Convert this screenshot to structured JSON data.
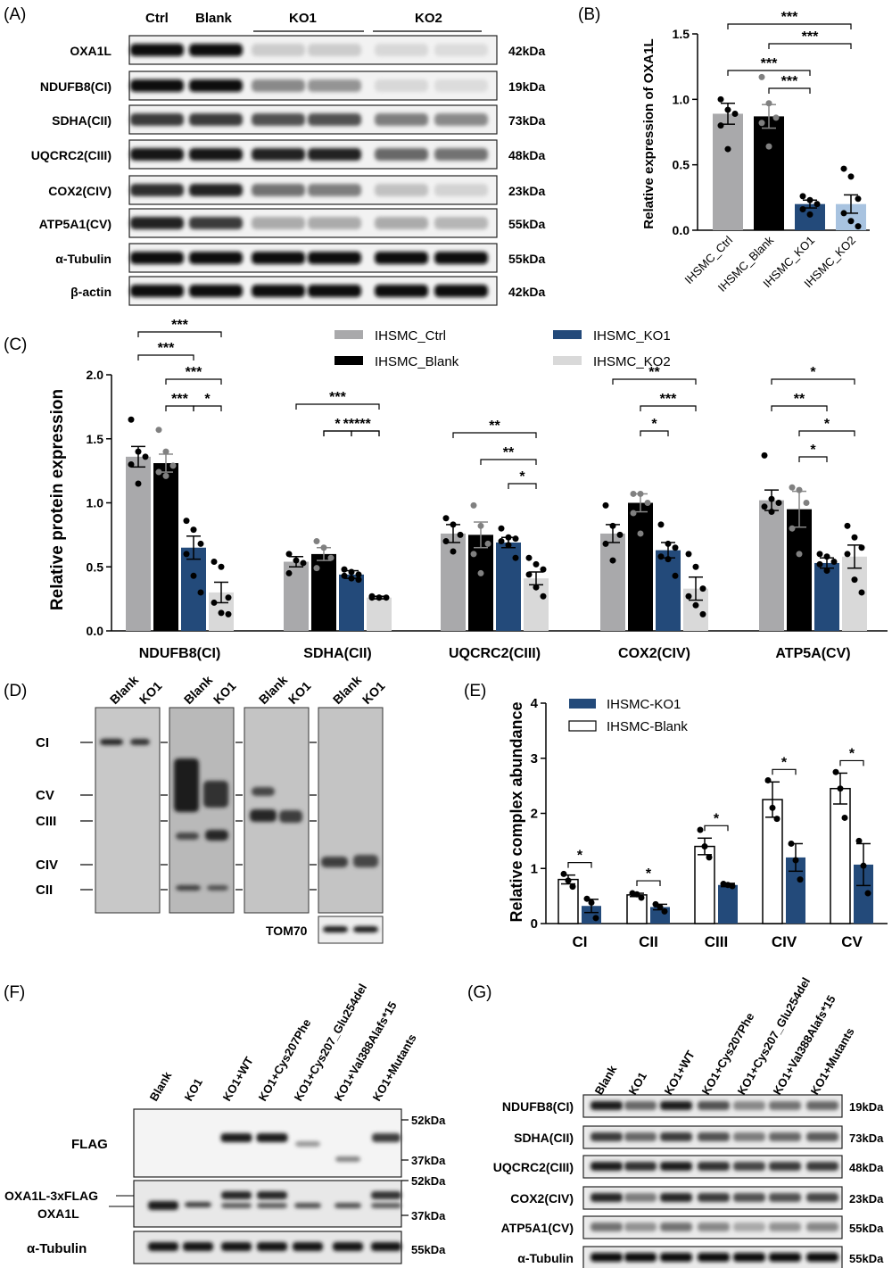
{
  "panels": {
    "A": "(A)",
    "B": "(B)",
    "C": "(C)",
    "D": "(D)",
    "E": "(E)",
    "F": "(F)",
    "G": "(G)"
  },
  "colors": {
    "ctrl": "#a9a9ab",
    "blank": "#000000",
    "ko1": "#234a7a",
    "ko2": "#a8c3e0",
    "ko2c": "#d9d9d9",
    "gray_dot": "#808080"
  },
  "panel_a": {
    "groups": [
      "Ctrl",
      "Blank",
      "KO1",
      "KO2"
    ],
    "rows": [
      {
        "label": "OXA1L",
        "kda": "42kDa",
        "intensity": [
          1,
          1,
          0.15,
          0.15,
          0.1,
          0.08
        ]
      },
      {
        "label": "NDUFB8(CI)",
        "kda": "19kDa",
        "intensity": [
          1,
          1,
          0.45,
          0.4,
          0.1,
          0.08
        ]
      },
      {
        "label": "SDHA(CII)",
        "kda": "73kDa",
        "intensity": [
          0.8,
          0.8,
          0.7,
          0.7,
          0.5,
          0.45
        ]
      },
      {
        "label": "UQCRC2(CIII)",
        "kda": "48kDa",
        "intensity": [
          0.95,
          0.95,
          0.9,
          0.9,
          0.6,
          0.55
        ]
      },
      {
        "label": "COX2(CIV)",
        "kda": "23kDa",
        "intensity": [
          0.85,
          0.9,
          0.55,
          0.5,
          0.2,
          0.12
        ]
      },
      {
        "label": "ATP5A1(CV)",
        "kda": "55kDa",
        "intensity": [
          0.9,
          0.8,
          0.3,
          0.3,
          0.3,
          0.25
        ]
      },
      {
        "label": "α-Tubulin",
        "kda": "55kDa",
        "intensity": [
          1,
          1,
          1,
          1,
          1,
          1
        ]
      },
      {
        "label": "β-actin",
        "kda": "42kDa",
        "intensity": [
          1,
          1,
          1,
          1,
          1,
          1
        ]
      }
    ]
  },
  "chart_data": [
    {
      "panel": "B",
      "type": "bar",
      "categories": [
        "IHSMC_Ctrl",
        "IHSMC_Blank",
        "IHSMC_KO1",
        "IHSMC_KO2"
      ],
      "values": [
        0.89,
        0.87,
        0.2,
        0.2
      ],
      "errors": [
        0.08,
        0.09,
        0.03,
        0.07
      ],
      "points": [
        [
          1.0,
          0.92,
          0.89,
          0.8,
          0.62
        ],
        [
          1.17,
          0.97,
          0.86,
          0.82,
          0.64
        ],
        [
          0.26,
          0.23,
          0.2,
          0.16,
          0.12
        ],
        [
          0.47,
          0.41,
          0.24,
          0.13,
          0.07,
          0.03
        ]
      ],
      "ylabel": "Relative expression of OXA1L",
      "ylim": [
        0,
        1.5
      ],
      "yticks": [
        "0.0",
        "0.5",
        "1.0",
        "1.5"
      ],
      "significance": [
        {
          "a": 0,
          "b": 3,
          "label": "***"
        },
        {
          "a": 1,
          "b": 3,
          "label": "***"
        },
        {
          "a": 0,
          "b": 2,
          "label": "***"
        },
        {
          "a": 1,
          "b": 2,
          "label": "***"
        }
      ]
    },
    {
      "panel": "C",
      "type": "bar",
      "categories": [
        "NDUFB8(CI)",
        "SDHA(CII)",
        "UQCRC2(CIII)",
        "COX2(CIV)",
        "ATP5A(CV)"
      ],
      "series": [
        {
          "name": "IHSMC_Ctrl",
          "values": [
            1.36,
            0.54,
            0.76,
            0.76,
            1.02
          ],
          "errors": [
            0.08,
            0.04,
            0.07,
            0.07,
            0.08
          ],
          "points": [
            [
              1.65,
              1.4,
              1.36,
              1.3,
              1.15
            ],
            [
              0.6,
              0.55,
              0.53,
              0.45
            ],
            [
              0.88,
              0.83,
              0.75,
              0.7,
              0.62
            ],
            [
              0.98,
              0.82,
              0.75,
              0.68,
              0.55
            ],
            [
              1.37,
              1.03,
              1.0,
              0.97,
              0.93
            ]
          ]
        },
        {
          "name": "IHSMC_Blank",
          "values": [
            1.31,
            0.6,
            0.75,
            1.0,
            0.95
          ],
          "errors": [
            0.07,
            0.05,
            0.1,
            0.07,
            0.14
          ],
          "points": [
            [
              1.57,
              1.4,
              1.29,
              1.24,
              1.21
            ],
            [
              0.7,
              0.65,
              0.57,
              0.49
            ],
            [
              0.98,
              0.82,
              0.68,
              0.6,
              0.45
            ],
            [
              1.07,
              1.07,
              1.0,
              0.92,
              0.76
            ],
            [
              1.12,
              1.1,
              1.0,
              0.8,
              0.6
            ]
          ]
        },
        {
          "name": "IHSMC_KO1",
          "values": [
            0.65,
            0.44,
            0.69,
            0.63,
            0.53
          ],
          "errors": [
            0.09,
            0.03,
            0.04,
            0.06,
            0.04
          ],
          "points": [
            [
              0.86,
              0.79,
              0.68,
              0.6,
              0.43,
              0.3
            ],
            [
              0.48,
              0.46,
              0.44,
              0.43,
              0.41,
              0.4
            ],
            [
              0.8,
              0.73,
              0.72,
              0.7,
              0.67,
              0.57
            ],
            [
              0.83,
              0.68,
              0.65,
              0.58,
              0.56,
              0.43
            ],
            [
              0.6,
              0.58,
              0.54,
              0.52,
              0.47
            ]
          ]
        },
        {
          "name": "IHSMC_KO2",
          "values": [
            0.3,
            0.26,
            0.41,
            0.33,
            0.58
          ],
          "errors": [
            0.08,
            0.01,
            0.05,
            0.09,
            0.09
          ],
          "points": [
            [
              0.54,
              0.5,
              0.26,
              0.22,
              0.14,
              0.13
            ],
            [
              0.27,
              0.26,
              0.26,
              0.26,
              0.26
            ],
            [
              0.57,
              0.52,
              0.48,
              0.44,
              0.34,
              0.27
            ],
            [
              0.6,
              0.5,
              0.33,
              0.27,
              0.2,
              0.13
            ],
            [
              0.82,
              0.73,
              0.65,
              0.6,
              0.4,
              0.3
            ]
          ]
        }
      ],
      "ylabel": "Relative protein expression",
      "ylim": [
        0,
        2.0
      ],
      "yticks": [
        "0.0",
        "0.5",
        "1.0",
        "1.5",
        "2.0"
      ],
      "significance": [
        [
          {
            "a": 0,
            "b": 3,
            "label": "***",
            "lvl": 3
          },
          {
            "a": 0,
            "b": 2,
            "label": "***",
            "lvl": 2
          },
          {
            "a": 1,
            "b": 3,
            "label": "***",
            "lvl": 1
          },
          {
            "a": 1,
            "b": 2,
            "label": "***",
            "lvl": 0
          },
          {
            "a": 2,
            "b": 3,
            "label": "*",
            "lvl": 0
          }
        ],
        [
          {
            "a": 0,
            "b": 3,
            "label": "***",
            "lvl": 2
          },
          {
            "a": 1,
            "b": 3,
            "label": "***",
            "lvl": 1
          },
          {
            "a": 1,
            "b": 2,
            "label": "*",
            "lvl": 0
          },
          {
            "a": 2,
            "b": 3,
            "label": "**",
            "lvl": 0
          }
        ],
        [
          {
            "a": 0,
            "b": 3,
            "label": "**",
            "lvl": 2
          },
          {
            "a": 1,
            "b": 3,
            "label": "**",
            "lvl": 1
          },
          {
            "a": 2,
            "b": 3,
            "label": "*",
            "lvl": 0
          }
        ],
        [
          {
            "a": 0,
            "b": 3,
            "label": "**",
            "lvl": 3
          },
          {
            "a": 1,
            "b": 3,
            "label": "***",
            "lvl": 2
          },
          {
            "a": 1,
            "b": 2,
            "label": "*",
            "lvl": 1
          }
        ],
        [
          {
            "a": 0,
            "b": 3,
            "label": "*",
            "lvl": 3
          },
          {
            "a": 0,
            "b": 2,
            "label": "**",
            "lvl": 2
          },
          {
            "a": 1,
            "b": 3,
            "label": "*",
            "lvl": 1
          },
          {
            "a": 1,
            "b": 2,
            "label": "*",
            "lvl": 0
          }
        ]
      ],
      "legend_position": "top"
    },
    {
      "panel": "E",
      "type": "bar",
      "categories": [
        "CI",
        "CII",
        "CIII",
        "CIV",
        "CV"
      ],
      "series": [
        {
          "name": "IHSMC-Blank",
          "values": [
            0.8,
            0.52,
            1.4,
            2.25,
            2.45
          ],
          "errors": [
            0.08,
            0.03,
            0.15,
            0.32,
            0.28
          ],
          "points": [
            [
              0.9,
              0.78,
              0.67
            ],
            [
              0.55,
              0.53,
              0.47
            ],
            [
              1.7,
              1.4,
              1.2
            ],
            [
              2.6,
              2.1,
              1.9
            ],
            [
              2.75,
              2.45,
              1.92
            ]
          ]
        },
        {
          "name": "IHSMC-KO1",
          "values": [
            0.32,
            0.3,
            0.7,
            1.2,
            1.07
          ],
          "errors": [
            0.12,
            0.05,
            0.03,
            0.25,
            0.38
          ],
          "points": [
            [
              0.45,
              0.38,
              0.1
            ],
            [
              0.35,
              0.3,
              0.22
            ],
            [
              0.72,
              0.7,
              0.68
            ],
            [
              1.45,
              1.15,
              0.8
            ],
            [
              1.5,
              1.05,
              0.55
            ]
          ]
        }
      ],
      "ylabel": "Relative complex abundance",
      "ylim": [
        0,
        4
      ],
      "yticks": [
        "0",
        "1",
        "2",
        "3",
        "4"
      ],
      "sig_label": "*"
    }
  ],
  "panel_d": {
    "lanes": [
      "Blank",
      "KO1"
    ],
    "complex_labels": [
      "CI",
      "CV",
      "CIII",
      "CIV",
      "CII"
    ],
    "loading": "TOM70"
  },
  "panel_f": {
    "lanes": [
      "Blank",
      "KO1",
      "KO1+WT",
      "KO1+Cys207Phe",
      "KO1+Cys207_Glu254del",
      "KO1+Val388Alafs*15",
      "KO1+Mutants"
    ],
    "rows": [
      {
        "label": "FLAG"
      },
      {
        "label": "OXA1L-3xFLAG"
      },
      {
        "label": "OXA1L"
      },
      {
        "label": "α-Tubulin"
      }
    ],
    "markers": [
      "52kDa",
      "37kDa",
      "52kDa",
      "37kDa",
      "55kDa"
    ]
  },
  "panel_g": {
    "lanes": [
      "Blank",
      "KO1",
      "KO1+WT",
      "KO1+Cys207Phe",
      "KO1+Cys207_Glu254del",
      "KO1+Val388Alafs*15",
      "KO1+Mutants"
    ],
    "rows": [
      {
        "label": "NDUFB8(CI)",
        "kda": "19kDa",
        "intensity": [
          0.95,
          0.6,
          0.95,
          0.7,
          0.45,
          0.55,
          0.6
        ]
      },
      {
        "label": "SDHA(CII)",
        "kda": "73kDa",
        "intensity": [
          0.8,
          0.6,
          0.8,
          0.7,
          0.5,
          0.6,
          0.65
        ]
      },
      {
        "label": "UQCRC2(CIII)",
        "kda": "48kDa",
        "intensity": [
          0.95,
          0.85,
          0.95,
          0.85,
          0.75,
          0.8,
          0.8
        ]
      },
      {
        "label": "COX2(CIV)",
        "kda": "23kDa",
        "intensity": [
          0.9,
          0.5,
          0.9,
          0.8,
          0.7,
          0.7,
          0.75
        ]
      },
      {
        "label": "ATP5A1(CV)",
        "kda": "55kDa",
        "intensity": [
          0.55,
          0.4,
          0.55,
          0.45,
          0.3,
          0.4,
          0.45
        ]
      },
      {
        "label": "α-Tubulin",
        "kda": "55kDa",
        "intensity": [
          1,
          1,
          1,
          1,
          1,
          1,
          1
        ]
      }
    ]
  }
}
